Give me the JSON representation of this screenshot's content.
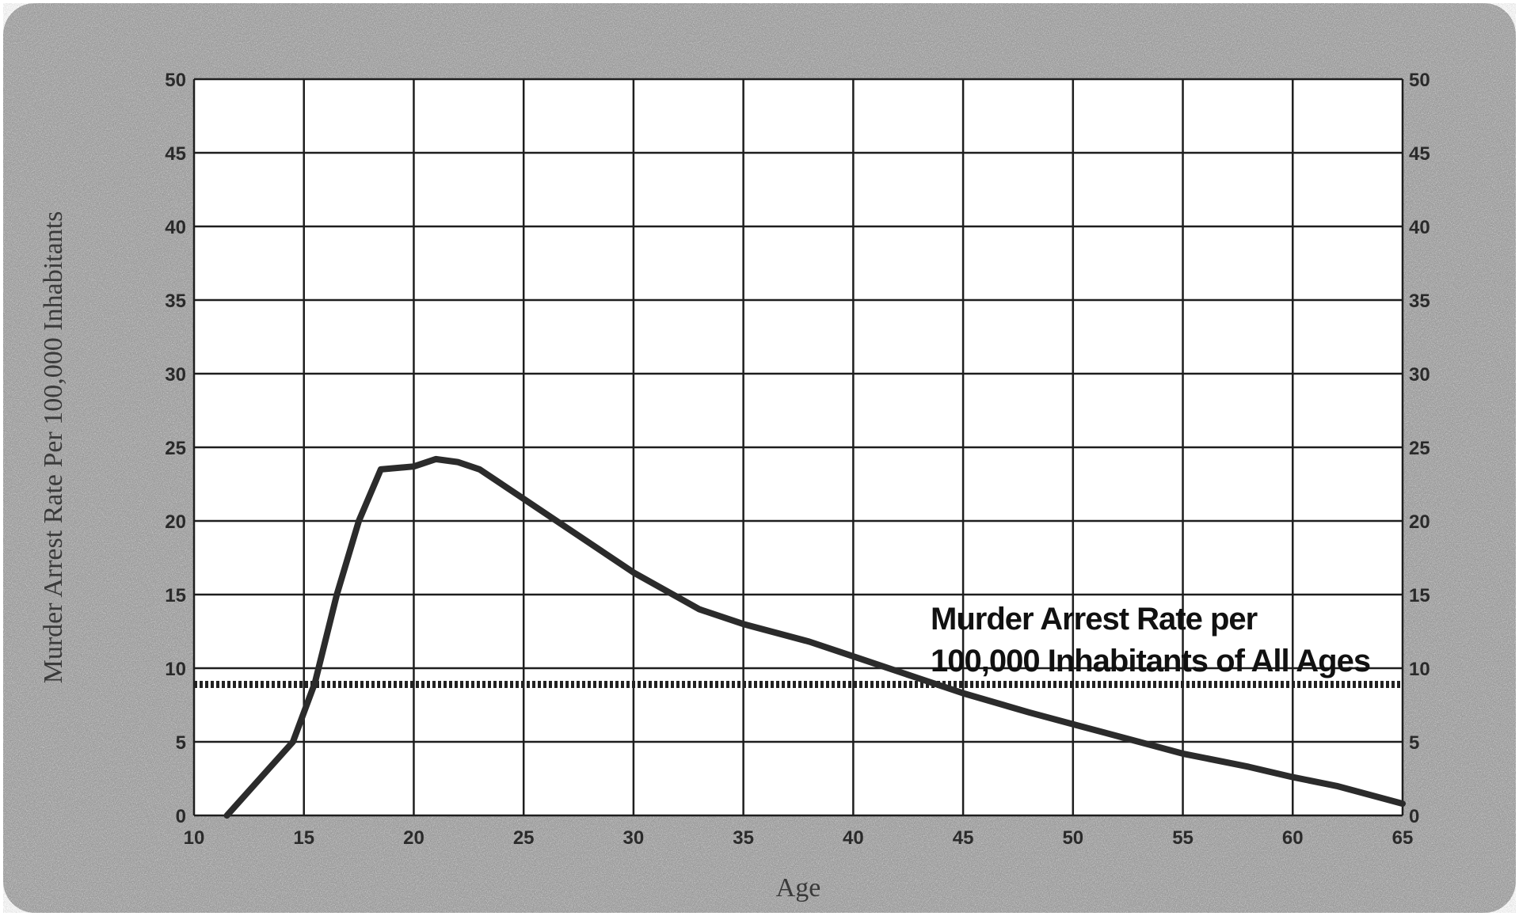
{
  "chart_data": {
    "type": "line",
    "title": "",
    "xlabel": "Age",
    "ylabel": "Murder Arrest Rate Per 100,000 Inhabitants",
    "xlim": [
      10,
      65
    ],
    "ylim": [
      0,
      50
    ],
    "x_ticks": [
      10,
      15,
      20,
      25,
      30,
      35,
      40,
      45,
      50,
      55,
      60,
      65
    ],
    "y_ticks": [
      0,
      5,
      10,
      15,
      20,
      25,
      30,
      35,
      40,
      45,
      50
    ],
    "grid": true,
    "right_axis": true,
    "series": [
      {
        "x": [
          11.5,
          13,
          14.5,
          15.5,
          16.5,
          17.5,
          18.5,
          20,
          21,
          22,
          23,
          25,
          27,
          30,
          33,
          35,
          38,
          40,
          43,
          45,
          48,
          50,
          53,
          55,
          58,
          60,
          62,
          65
        ],
        "y": [
          0,
          2.5,
          5,
          9,
          15,
          20,
          23.5,
          23.7,
          24.2,
          24,
          23.5,
          21.5,
          19.5,
          16.5,
          14,
          13,
          11.8,
          10.8,
          9.3,
          8.3,
          7,
          6.2,
          5,
          4.2,
          3.3,
          2.6,
          2,
          0.8
        ]
      }
    ],
    "reference_line": {
      "label": "Murder Arrest Rate per 100,000 Inhabitants of All Ages",
      "label_lines": [
        "Murder Arrest Rate per",
        "100,000 Inhabitants of All Ages"
      ],
      "y": 8.9
    },
    "colors": {
      "background": "#8a8a8a",
      "plot": "#ffffff",
      "grid": "#1e1e1e",
      "line": "#2b2b2b",
      "reference": "#222222"
    }
  }
}
